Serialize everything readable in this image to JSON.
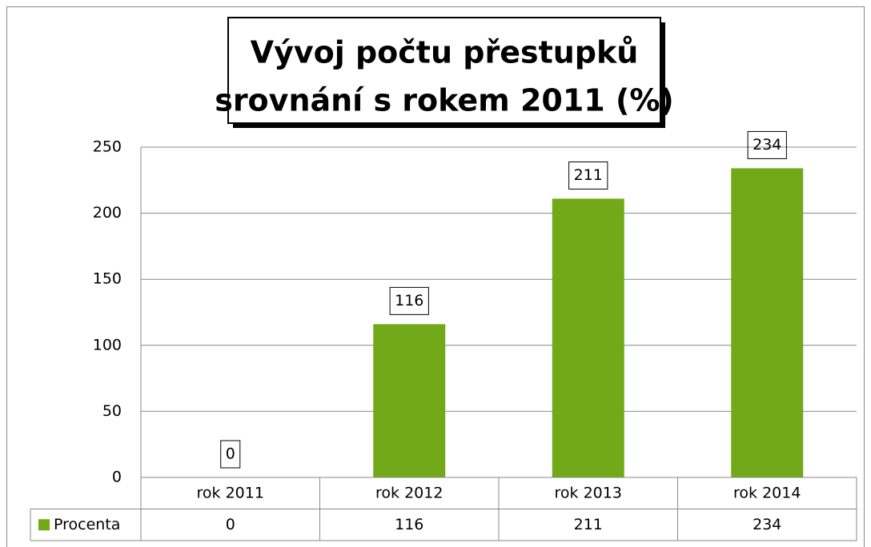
{
  "chart_data": {
    "type": "bar",
    "title": [
      "Vývoj počtu přestupků",
      "srovnání s rokem 2011 (%)"
    ],
    "categories": [
      "rok 2011",
      "rok 2012",
      "rok 2013",
      "rok 2014"
    ],
    "series": [
      {
        "name": "Procenta",
        "color": "#72a919",
        "values": [
          0,
          116,
          211,
          234
        ]
      }
    ],
    "ylim": [
      0,
      250
    ],
    "yticks": [
      0,
      50,
      100,
      150,
      200,
      250
    ],
    "grid": true,
    "data_table": true
  }
}
